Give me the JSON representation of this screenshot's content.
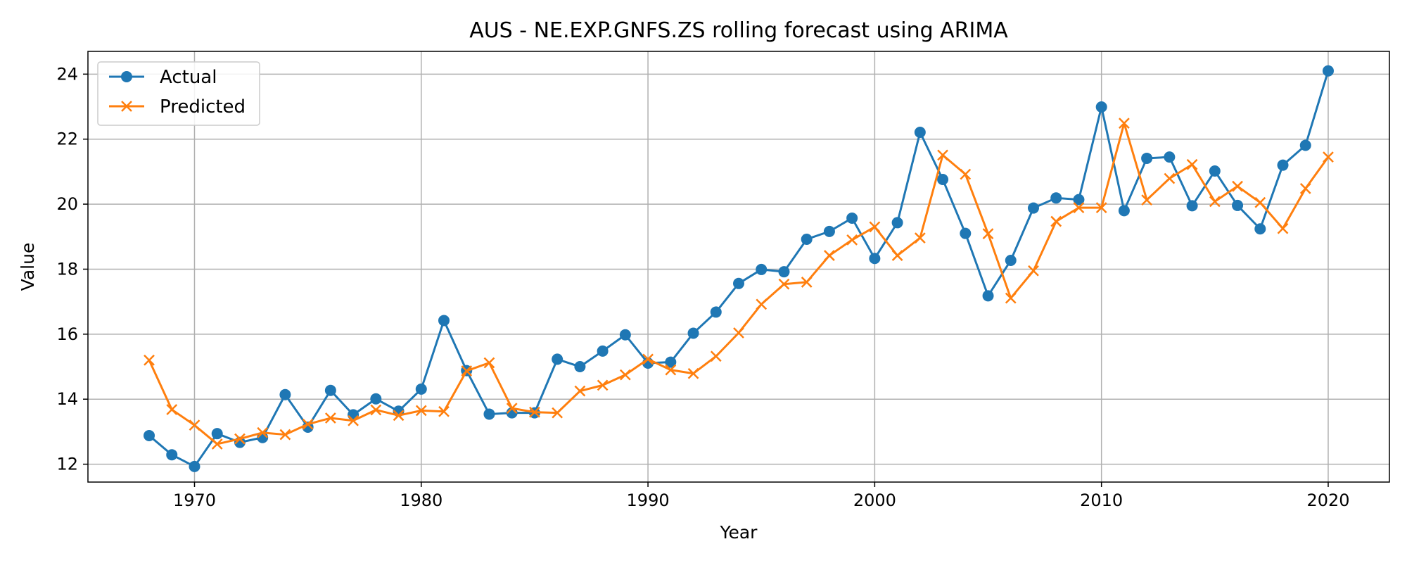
{
  "chart_data": {
    "type": "line",
    "title": "AUS - NE.EXP.GNFS.ZS rolling forecast using ARIMA",
    "xlabel": "Year",
    "ylabel": "Value",
    "xlim": [
      1965.3,
      2022.7
    ],
    "ylim": [
      11.45,
      24.7
    ],
    "xticks": [
      1970,
      1980,
      1990,
      2000,
      2010,
      2020
    ],
    "yticks": [
      12,
      14,
      16,
      18,
      20,
      22,
      24
    ],
    "grid": true,
    "legend_position": "top-left",
    "x": [
      1968,
      1969,
      1970,
      1971,
      1972,
      1973,
      1974,
      1975,
      1976,
      1977,
      1978,
      1979,
      1980,
      1981,
      1982,
      1983,
      1984,
      1985,
      1986,
      1987,
      1988,
      1989,
      1990,
      1991,
      1992,
      1993,
      1994,
      1995,
      1996,
      1997,
      1998,
      1999,
      2000,
      2001,
      2002,
      2003,
      2004,
      2005,
      2006,
      2007,
      2008,
      2009,
      2010,
      2011,
      2012,
      2013,
      2014,
      2015,
      2016,
      2017,
      2018,
      2019,
      2020
    ],
    "series": [
      {
        "name": "Actual",
        "color": "#1f77b4",
        "marker": "circle",
        "values": [
          12.88,
          12.29,
          11.93,
          12.94,
          12.67,
          12.82,
          14.14,
          13.14,
          14.27,
          13.52,
          14.01,
          13.63,
          14.31,
          16.42,
          14.88,
          13.54,
          13.58,
          13.58,
          15.23,
          15.0,
          15.48,
          15.98,
          15.11,
          15.14,
          16.03,
          16.68,
          17.56,
          17.99,
          17.92,
          18.92,
          19.16,
          19.57,
          18.33,
          19.43,
          22.21,
          20.76,
          19.1,
          17.18,
          18.27,
          19.88,
          20.19,
          20.14,
          22.99,
          19.8,
          21.41,
          21.45,
          19.95,
          21.02,
          19.96,
          19.24,
          21.2,
          21.81,
          24.1
        ]
      },
      {
        "name": "Predicted",
        "color": "#ff7f0e",
        "marker": "x",
        "values": [
          15.2,
          13.68,
          13.2,
          12.62,
          12.78,
          12.97,
          12.91,
          13.23,
          13.42,
          13.34,
          13.67,
          13.5,
          13.65,
          13.62,
          14.87,
          15.12,
          13.72,
          13.6,
          13.58,
          14.25,
          14.43,
          14.75,
          15.23,
          14.9,
          14.79,
          15.32,
          16.04,
          16.92,
          17.54,
          17.6,
          18.42,
          18.9,
          19.3,
          18.42,
          18.96,
          21.51,
          20.92,
          19.09,
          17.11,
          17.95,
          19.47,
          19.89,
          19.89,
          22.49,
          20.13,
          20.79,
          21.22,
          20.08,
          20.55,
          20.05,
          19.25,
          20.48,
          21.45
        ]
      }
    ]
  }
}
